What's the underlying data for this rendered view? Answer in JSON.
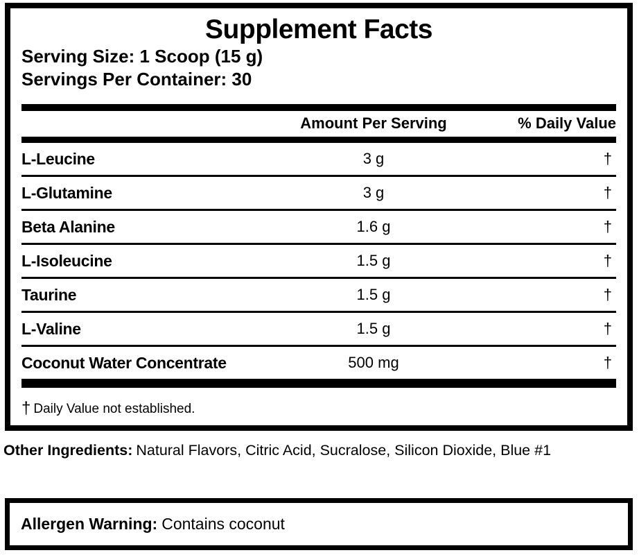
{
  "supplement_facts": {
    "title": "Supplement Facts",
    "serving_size": "Serving Size: 1 Scoop (15 g)",
    "servings_per_container": "Servings Per Container: 30",
    "columns": {
      "amount": "Amount Per Serving",
      "daily_value": "% Daily Value"
    },
    "rows": [
      {
        "name": "L-Leucine",
        "amount": "3 g",
        "daily_value": "†"
      },
      {
        "name": "L-Glutamine",
        "amount": "3 g",
        "daily_value": "†"
      },
      {
        "name": "Beta Alanine",
        "amount": "1.6 g",
        "daily_value": "†"
      },
      {
        "name": "L-Isoleucine",
        "amount": "1.5 g",
        "daily_value": "†"
      },
      {
        "name": "Taurine",
        "amount": "1.5 g",
        "daily_value": "†"
      },
      {
        "name": "L-Valine",
        "amount": "1.5 g",
        "daily_value": "†"
      },
      {
        "name": "Coconut Water Concentrate",
        "amount": "500 mg",
        "daily_value": "†"
      }
    ],
    "footnote_symbol": "†",
    "footnote_text": "Daily Value not established."
  },
  "other_ingredients": {
    "label": "Other Ingredients:",
    "value": "Natural Flavors, Citric Acid, Sucralose, Silicon Dioxide, Blue #1"
  },
  "allergen_warning": {
    "label": "Allergen Warning:",
    "value": "Contains coconut"
  },
  "colors": {
    "ink": "#000000",
    "paper": "#ffffff"
  }
}
